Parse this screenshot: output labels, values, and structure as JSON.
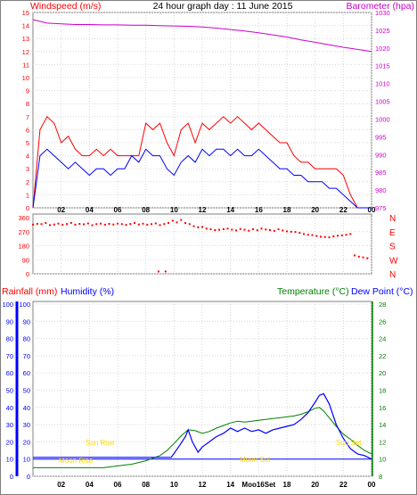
{
  "colors": {
    "windspeed": "#ff0000",
    "windspeed_avg": "#0000ff",
    "barometer": "#cc00cc",
    "direction": "#ff0000",
    "rainfall": "#ff0000",
    "humidity": "#0000ff",
    "temperature": "#008000",
    "dewpoint": "#0000ff",
    "annotation": "#ffd700",
    "frame": "#808080",
    "axis": "#000000"
  },
  "header": {
    "left_title": "Windspeed (m/s)",
    "center_title": "24 hour graph day : 11 June 2015",
    "right_title": "Barometer (hpa)"
  },
  "bottom_header": {
    "rainfall": "Rainfall (mm)",
    "humidity": "Humidity (%)",
    "temperature": "Temperature (°C)",
    "dewpoint": "Dew Point (°C)"
  },
  "x_ticks": [
    "02",
    "04",
    "06",
    "08",
    "10",
    "12",
    "14",
    "16",
    "18",
    "20",
    "22",
    "00"
  ],
  "x_ticks_bottom": [
    "02",
    "04",
    "06",
    "08",
    "10",
    "12",
    "14",
    "Moo16Set",
    "18",
    "20",
    "22",
    "00"
  ],
  "annotations": {
    "sun_rise": "Sun Rise",
    "moon_rise": "Moon Rise",
    "moon_set": "Moon Set",
    "sun_set": "Sun Set"
  },
  "chart_data": [
    {
      "type": "line",
      "title": "24 hour graph day : 11 June 2015",
      "xlabel": "",
      "ylabel": "Windspeed (m/s)",
      "y2label": "Barometer (hpa)",
      "xlim": [
        0,
        24
      ],
      "ylim": [
        0,
        15
      ],
      "y2lim": [
        975,
        1030
      ],
      "y_ticks": [
        0,
        1,
        2,
        3,
        4,
        5,
        6,
        7,
        8,
        9,
        10,
        11,
        12,
        13,
        14,
        15
      ],
      "y2_ticks": [
        975,
        980,
        985,
        990,
        995,
        1000,
        1005,
        1010,
        1015,
        1020,
        1025,
        1030
      ],
      "series": [
        {
          "name": "Windspeed (m/s)",
          "axis": "left",
          "x": [
            0,
            0.5,
            1,
            1.5,
            2,
            2.5,
            3,
            3.5,
            4,
            4.5,
            5,
            5.5,
            6,
            6.5,
            7,
            7.5,
            8,
            8.5,
            9,
            9.5,
            10,
            10.5,
            11,
            11.5,
            12,
            12.5,
            13,
            13.5,
            14,
            14.5,
            15,
            15.5,
            16,
            16.5,
            17,
            17.5,
            18,
            18.5,
            19,
            19.5,
            20,
            20.5,
            21,
            21.5,
            22,
            22.5,
            23,
            23.5,
            24
          ],
          "values": [
            0,
            6,
            7,
            6.5,
            5,
            5.5,
            4.5,
            4,
            4,
            4.5,
            4,
            4.5,
            4,
            4,
            4,
            4,
            6.5,
            6,
            6.5,
            5,
            4,
            6,
            6.5,
            5,
            6.5,
            6,
            6.5,
            7,
            6.5,
            7,
            6.5,
            6,
            6.5,
            6,
            5.5,
            5,
            5,
            4,
            3.5,
            3.5,
            3,
            3,
            3,
            3,
            2.5,
            1,
            0,
            0,
            0
          ]
        },
        {
          "name": "Average windspeed",
          "axis": "left",
          "x": [
            0,
            0.5,
            1,
            1.5,
            2,
            2.5,
            3,
            3.5,
            4,
            4.5,
            5,
            5.5,
            6,
            6.5,
            7,
            7.5,
            8,
            8.5,
            9,
            9.5,
            10,
            10.5,
            11,
            11.5,
            12,
            12.5,
            13,
            13.5,
            14,
            14.5,
            15,
            15.5,
            16,
            16.5,
            17,
            17.5,
            18,
            18.5,
            19,
            19.5,
            20,
            20.5,
            21,
            21.5,
            22,
            22.5,
            23,
            23.5,
            24
          ],
          "values": [
            0,
            4,
            4.5,
            4,
            3.5,
            3,
            3.5,
            3,
            2.5,
            3,
            3,
            2.5,
            3,
            3,
            4,
            3.5,
            4.5,
            4,
            4,
            3,
            2.5,
            3.5,
            4,
            3.5,
            4.5,
            4,
            4.5,
            4.5,
            4,
            4.5,
            4,
            4,
            4.5,
            4,
            3.5,
            3,
            3,
            2.5,
            2.5,
            2,
            2,
            2,
            1.5,
            1.5,
            1,
            0.5,
            0,
            0,
            0
          ]
        },
        {
          "name": "Barometer (hpa)",
          "axis": "right",
          "x": [
            0,
            1,
            2,
            3,
            4,
            5,
            6,
            7,
            8,
            9,
            10,
            11,
            12,
            13,
            14,
            15,
            16,
            17,
            18,
            19,
            20,
            21,
            22,
            23,
            24
          ],
          "values": [
            1028,
            1027,
            1026.8,
            1026.6,
            1026.6,
            1026.5,
            1026.5,
            1026.4,
            1026.4,
            1026.3,
            1026.2,
            1026.1,
            1025.9,
            1025.6,
            1025.2,
            1024.8,
            1024.3,
            1023.7,
            1023.1,
            1022.3,
            1021.6,
            1020.9,
            1020.2,
            1019.6,
            1019
          ]
        }
      ]
    },
    {
      "type": "scatter",
      "title": "",
      "xlabel": "",
      "ylabel": "",
      "xlim": [
        0,
        24
      ],
      "ylim": [
        0,
        360
      ],
      "y_ticks": [
        0,
        90,
        180,
        270,
        360
      ],
      "direction_labels": [
        "N",
        "W",
        "S",
        "E",
        "N"
      ],
      "series": [
        {
          "name": "Wind direction",
          "x": [
            0,
            0.3,
            0.6,
            0.9,
            1.2,
            1.5,
            1.8,
            2.1,
            2.4,
            2.7,
            3,
            3.3,
            3.6,
            3.9,
            4.2,
            4.5,
            4.8,
            5.1,
            5.4,
            5.7,
            6,
            6.3,
            6.6,
            6.9,
            7.2,
            7.5,
            7.8,
            8.1,
            8.4,
            8.7,
            9,
            9.3,
            9.6,
            9.9,
            10.2,
            10.5,
            10.8,
            11.1,
            11.4,
            11.7,
            12,
            12.3,
            12.6,
            12.9,
            13.2,
            13.5,
            13.8,
            14.1,
            14.4,
            14.7,
            15,
            15.3,
            15.6,
            15.9,
            16.2,
            16.5,
            16.8,
            17.1,
            17.4,
            17.7,
            18,
            18.3,
            18.6,
            18.9,
            19.2,
            19.5,
            19.8,
            20.1,
            20.4,
            20.7,
            21,
            21.3,
            21.6,
            21.9,
            22.2,
            22.5,
            22.8,
            23.1,
            23.4,
            23.7,
            8.9,
            9.4
          ],
          "values": [
            315,
            320,
            318,
            325,
            312,
            316,
            322,
            314,
            319,
            326,
            315,
            320,
            317,
            323,
            311,
            318,
            322,
            315,
            320,
            316,
            322,
            318,
            313,
            319,
            325,
            316,
            321,
            315,
            318,
            323,
            312,
            319,
            326,
            340,
            330,
            345,
            325,
            318,
            305,
            298,
            300,
            290,
            285,
            280,
            282,
            286,
            290,
            283,
            278,
            287,
            282,
            276,
            285,
            279,
            290,
            284,
            280,
            275,
            285,
            278,
            272,
            270,
            268,
            262,
            255,
            250,
            248,
            242,
            238,
            236,
            234,
            240,
            244,
            246,
            250,
            255,
            118,
            110,
            105,
            100,
            15,
            15
          ]
        }
      ]
    },
    {
      "type": "line",
      "title": "",
      "xlabel": "",
      "ylabel": "Rainfall (mm) / Humidity (%)",
      "y2label": "Temperature (°C) / Dew Point (°C)",
      "xlim": [
        0,
        24
      ],
      "ylim": [
        0,
        100
      ],
      "y2lim": [
        8,
        28
      ],
      "y_ticks": [
        0,
        10,
        20,
        30,
        40,
        50,
        60,
        70,
        80,
        90,
        100
      ],
      "y2_ticks": [
        8,
        10,
        12,
        14,
        16,
        18,
        20,
        22,
        24,
        26,
        28
      ],
      "series": [
        {
          "name": "Humidity (%)",
          "axis": "left",
          "x": [
            0,
            1,
            2,
            3,
            4,
            5,
            6,
            7,
            8,
            9,
            9.8,
            10.4,
            10.8,
            11,
            11.3,
            11.7,
            12,
            12.5,
            13,
            13.5,
            14,
            14.5,
            15,
            15.5,
            16,
            16.5,
            17,
            17.5,
            18,
            18.5,
            19,
            19.5,
            20,
            20.3,
            20.6,
            21,
            21.5,
            22,
            22.5,
            23,
            23.5,
            24
          ],
          "values": [
            11,
            11,
            11,
            11,
            11,
            11,
            11,
            11,
            11,
            11,
            11,
            18,
            23,
            27,
            20,
            14,
            17,
            20,
            23,
            25,
            28,
            26,
            28,
            26,
            27,
            25,
            27,
            28,
            29,
            30,
            33,
            37,
            43,
            47,
            48,
            42,
            30,
            22,
            16,
            13,
            12,
            10
          ]
        },
        {
          "name": "Temperature (°C)",
          "axis": "right",
          "x": [
            0,
            1,
            2,
            3,
            4,
            5,
            6,
            7,
            8,
            9,
            9.5,
            10,
            10.5,
            11,
            11.5,
            12,
            12.5,
            13,
            13.5,
            14,
            14.5,
            15,
            15.5,
            16,
            16.5,
            17,
            17.5,
            18,
            18.5,
            19,
            19.5,
            20,
            20.3,
            20.6,
            21,
            21.5,
            22,
            22.5,
            23,
            23.5,
            24
          ],
          "values": [
            9,
            9,
            9,
            9,
            9,
            9,
            9.2,
            9.4,
            9.8,
            10.4,
            11,
            11.8,
            12.7,
            13.4,
            13.3,
            13,
            13.2,
            13.6,
            13.9,
            14.2,
            14.4,
            14.3,
            14.4,
            14.5,
            14.6,
            14.7,
            14.8,
            14.9,
            15,
            15.2,
            15.5,
            15.9,
            16,
            15.6,
            14.8,
            13.8,
            12.9,
            12.3,
            11.6,
            11,
            10.6
          ]
        },
        {
          "name": "Dew Point (°C)",
          "axis": "right",
          "x": [
            0,
            24
          ],
          "values": [
            10,
            10
          ]
        }
      ]
    }
  ]
}
